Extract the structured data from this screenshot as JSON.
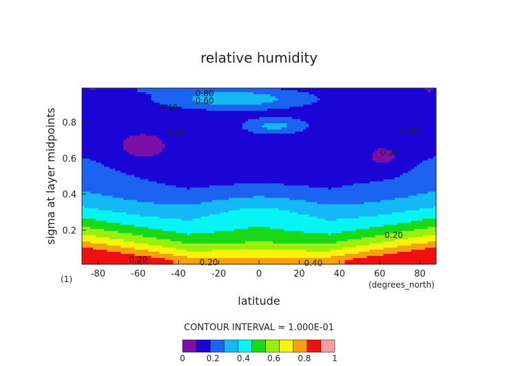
{
  "chart_data": {
    "type": "heatmap",
    "title": "relative humidity",
    "xlabel": "latitude",
    "xunits": "(degrees_north)",
    "ylabel": "sigma at layer midpoints",
    "corner_label": "(1)",
    "xlim": [
      -88,
      88
    ],
    "ylim": [
      0.99,
      0.01
    ],
    "xticks": [
      -80,
      -60,
      -40,
      -20,
      0,
      20,
      40,
      60,
      80
    ],
    "yticks": [
      0.2,
      0.4,
      0.6,
      0.8
    ],
    "contour_interval_label": "CONTOUR INTERVAL = 1.000E-01",
    "contour_labels": [
      {
        "text": "0.20",
        "x": -60,
        "y": 0.035
      },
      {
        "text": "0.20",
        "x": -25,
        "y": 0.02
      },
      {
        "text": "0.40",
        "x": 27,
        "y": 0.015
      },
      {
        "text": "0.20",
        "x": 67,
        "y": 0.17
      },
      {
        "text": "0.20",
        "x": -41,
        "y": 0.74
      },
      {
        "text": "0.40",
        "x": -45,
        "y": 0.88
      },
      {
        "text": "0.60",
        "x": -27,
        "y": 0.92
      },
      {
        "text": "0.80",
        "x": -27,
        "y": 0.96
      },
      {
        "text": "0.20",
        "x": 65,
        "y": 0.63
      },
      {
        "text": "0.40",
        "x": 75,
        "y": 0.75
      }
    ],
    "colorbar": {
      "boundaries": [
        0,
        0.1,
        0.2,
        0.3,
        0.4,
        0.5,
        0.6,
        0.7,
        0.8,
        0.9,
        1
      ],
      "tick_labels": [
        "0",
        "0.2",
        "0.4",
        "0.6",
        "0.8",
        "1"
      ],
      "colors": [
        "#7b0fa5",
        "#1a05d6",
        "#1b63f0",
        "#14b8f4",
        "#08f4f4",
        "#19d919",
        "#9bef0f",
        "#f5f50c",
        "#f5a20c",
        "#f01010",
        "#f2a0a0"
      ]
    }
  }
}
